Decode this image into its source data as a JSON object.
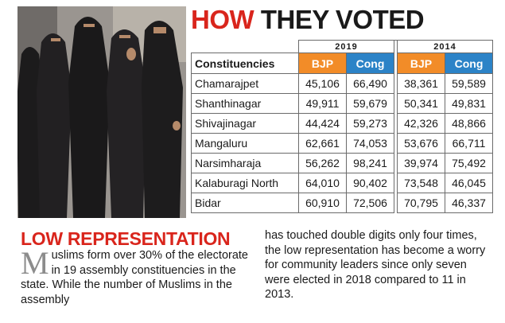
{
  "headline": {
    "part1": "HOW",
    "part2": "THEY VOTED"
  },
  "table": {
    "years": [
      "2019",
      "2014"
    ],
    "label_header": "Constituencies",
    "party_headers": [
      "BJP",
      "Cong",
      "BJP",
      "Cong"
    ],
    "rows": [
      {
        "name": "Chamarajpet",
        "values": [
          "45,106",
          "66,490",
          "38,361",
          "59,589"
        ]
      },
      {
        "name": "Shanthinagar",
        "values": [
          "49,911",
          "59,679",
          "50,341",
          "49,831"
        ]
      },
      {
        "name": "Shivajinagar",
        "values": [
          "44,424",
          "59,273",
          "42,326",
          "48,866"
        ]
      },
      {
        "name": "Mangaluru",
        "values": [
          "62,661",
          "74,053",
          "53,676",
          "66,711"
        ]
      },
      {
        "name": "Narsimharaja",
        "values": [
          "56,262",
          "98,241",
          "39,974",
          "75,492"
        ]
      },
      {
        "name": "Kalaburagi North",
        "values": [
          "64,010",
          "90,402",
          "73,548",
          "46,045"
        ]
      },
      {
        "name": "Bidar",
        "values": [
          "60,910",
          "72,506",
          "70,795",
          "46,337"
        ]
      }
    ]
  },
  "colors": {
    "bjp": "#f28c28",
    "cong": "#2c83c7",
    "headline_red": "#d9251c"
  },
  "article": {
    "heading": "LOW REPRESENTATION",
    "dropcap": "M",
    "left_text": "uslims form over 30% of the electorate in 19 assembly constituencies in the state. While the number of Muslims in the assembly",
    "right_text": "has touched double digits only four times, the low representation has become a worry for community leaders since only seven were elected in 2018 compared to 11 in 2013."
  }
}
